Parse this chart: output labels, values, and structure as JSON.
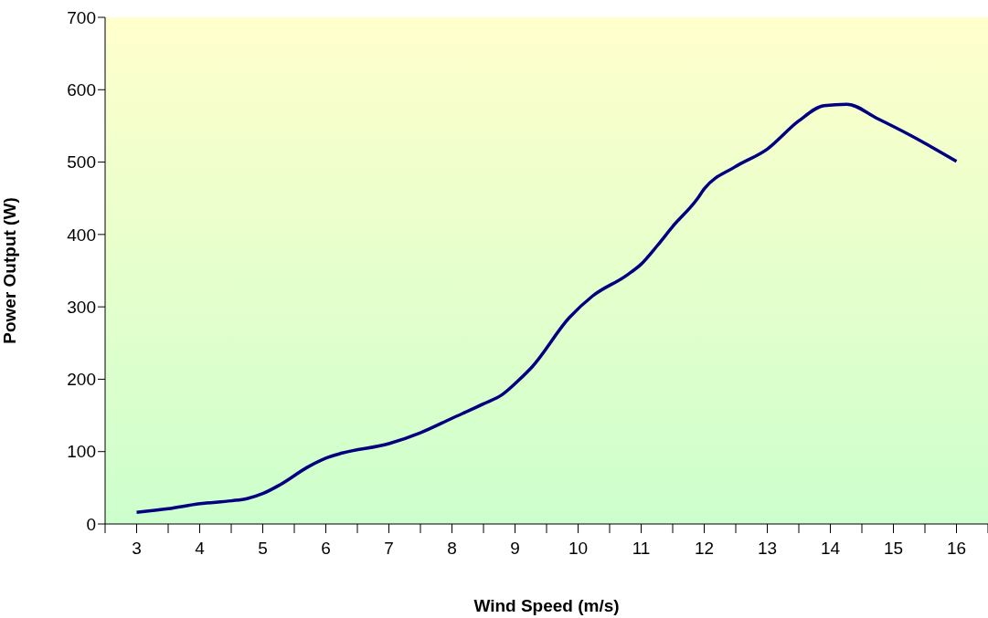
{
  "chart_data": {
    "type": "line",
    "xlabel": "Wind Speed (m/s)",
    "ylabel": "Power Output (W)",
    "x": [
      3,
      3.5,
      4,
      4.5,
      4.75,
      5,
      5.27,
      5.72,
      6,
      6.26,
      7,
      7.5,
      8,
      8.5,
      8.8,
      9.05,
      9.27,
      9.86,
      10.23,
      10.76,
      11,
      11.26,
      11.5,
      11.88,
      12,
      12.48,
      13,
      13.5,
      13.9,
      14.26,
      14.75,
      15.27,
      16
    ],
    "series": [
      {
        "color": "#000080",
        "values": [
          16,
          21,
          28,
          32,
          35,
          42,
          54,
          79,
          91,
          98,
          111,
          126,
          146,
          166,
          179,
          198,
          217,
          285,
          315,
          343,
          359,
          385,
          411,
          448,
          463,
          493,
          518,
          557,
          578,
          580,
          560,
          537,
          501
        ]
      }
    ],
    "xlim": [
      2.5,
      16.5
    ],
    "xticks": [
      {
        "value": 2.5,
        "label": null
      },
      {
        "value": 3,
        "label": "3"
      },
      {
        "value": 3.5,
        "label": null
      },
      {
        "value": 4,
        "label": "4"
      },
      {
        "value": 4.5,
        "label": null
      },
      {
        "value": 5,
        "label": "5"
      },
      {
        "value": 5.5,
        "label": null
      },
      {
        "value": 6,
        "label": "6"
      },
      {
        "value": 6.5,
        "label": null
      },
      {
        "value": 7,
        "label": "7"
      },
      {
        "value": 7.5,
        "label": null
      },
      {
        "value": 8,
        "label": "8"
      },
      {
        "value": 8.5,
        "label": null
      },
      {
        "value": 9,
        "label": "9"
      },
      {
        "value": 9.5,
        "label": null
      },
      {
        "value": 10,
        "label": "10"
      },
      {
        "value": 10.5,
        "label": null
      },
      {
        "value": 11,
        "label": "11"
      },
      {
        "value": 11.5,
        "label": null
      },
      {
        "value": 12,
        "label": "12"
      },
      {
        "value": 12.5,
        "label": null
      },
      {
        "value": 13,
        "label": "13"
      },
      {
        "value": 13.5,
        "label": null
      },
      {
        "value": 14,
        "label": "14"
      },
      {
        "value": 14.5,
        "label": null
      },
      {
        "value": 15,
        "label": "15"
      },
      {
        "value": 15.5,
        "label": null
      },
      {
        "value": 16,
        "label": "16"
      },
      {
        "value": 16.5,
        "label": null
      }
    ],
    "ylim": [
      0,
      700
    ],
    "yticks": [
      0,
      100,
      200,
      300,
      400,
      500,
      600,
      700
    ],
    "grid": false,
    "legend": false,
    "marker": "none",
    "line_style": "solid"
  }
}
